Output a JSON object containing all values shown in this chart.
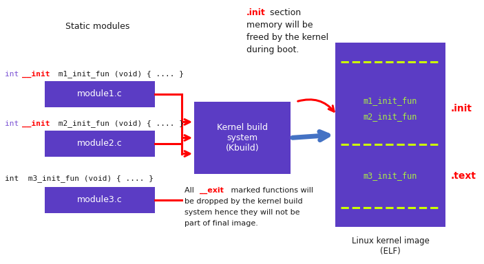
{
  "bg_color": "#ffffff",
  "purple_box": "#5b3cc4",
  "yellow_dash": "#ccff00",
  "red_color": "#ff0000",
  "blue_arrow": "#4472c4",
  "text_dark": "#1a1a1a",
  "text_white": "#ffffff",
  "text_green": "#aaee44",
  "purple_text": "#7b52d4",
  "static_modules_label": "Static modules",
  "module_labels": [
    "module1.c",
    "module2.c",
    "module3.c"
  ],
  "kbuild_label": "Kernel build\nsystem\n(Kbuild)",
  "linux_image_label": "Linux kernel image\n(ELF)",
  "m1_init_fun": "m1_init_fun",
  "m2_init_fun": "m2_init_fun",
  "m3_init_fun": "m3_init_fun",
  "init_label": ".init",
  "text_label": ".text",
  "figw": 7.03,
  "figh": 3.84,
  "dpi": 100
}
